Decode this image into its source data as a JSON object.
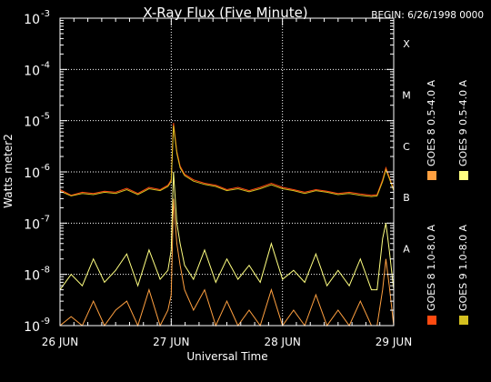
{
  "chart_data": {
    "type": "line",
    "title": "X-Ray Flux (Five Minute)",
    "begin_label": "BEGIN: 6/26/1998 0000",
    "ylabel": "Watts meter2",
    "xlabel": "Universal Time",
    "yscale": "log",
    "ylim": [
      1e-09,
      0.001
    ],
    "xlim": [
      0,
      3
    ],
    "grid": true,
    "y_ticks": [
      {
        "base": "10",
        "exp": "-9"
      },
      {
        "base": "10",
        "exp": "-8"
      },
      {
        "base": "10",
        "exp": "-7"
      },
      {
        "base": "10",
        "exp": "-6"
      },
      {
        "base": "10",
        "exp": "-5"
      },
      {
        "base": "10",
        "exp": "-4"
      },
      {
        "base": "10",
        "exp": "-3"
      }
    ],
    "x_ticks": [
      "26 JUN",
      "27 JUN",
      "28 JUN",
      "29 JUN"
    ],
    "flare_classes": [
      "A",
      "B",
      "C",
      "M",
      "X"
    ],
    "legend": [
      "GOES 8 1.0-8.0 A",
      "GOES 8 0.5-4.0 A",
      "GOES 9 1.0-8.0 A",
      "GOES 9 0.5-4.0 A"
    ],
    "colors": {
      "goes8_long": "#ff4a10",
      "goes8_short": "#ffa040",
      "goes9_long": "#d4c020",
      "goes9_short": "#ffff80",
      "axes": "#ffffff",
      "grid": "#ffffff"
    },
    "series": [
      {
        "name": "GOES 8 1.0-8.0 A",
        "x": [
          0,
          0.1,
          0.2,
          0.3,
          0.4,
          0.5,
          0.6,
          0.7,
          0.8,
          0.9,
          0.97,
          1.0,
          1.02,
          1.05,
          1.08,
          1.12,
          1.2,
          1.3,
          1.4,
          1.5,
          1.6,
          1.7,
          1.8,
          1.9,
          2.0,
          2.1,
          2.2,
          2.3,
          2.4,
          2.5,
          2.6,
          2.7,
          2.8,
          2.85,
          2.9,
          2.93,
          2.96,
          3.0
        ],
        "values": [
          4.5e-07,
          3.5e-07,
          4e-07,
          3.8e-07,
          4.2e-07,
          4e-07,
          4.8e-07,
          3.8e-07,
          5e-07,
          4.5e-07,
          5.5e-07,
          7e-07,
          9e-06,
          2.5e-06,
          1.3e-06,
          9e-07,
          7e-07,
          6e-07,
          5.5e-07,
          4.5e-07,
          5e-07,
          4.3e-07,
          5e-07,
          6e-07,
          5e-07,
          4.5e-07,
          4e-07,
          4.5e-07,
          4.2e-07,
          3.8e-07,
          4e-07,
          3.7e-07,
          3.5e-07,
          3.6e-07,
          7e-07,
          1.2e-06,
          8e-07,
          4.5e-07
        ]
      },
      {
        "name": "GOES 8 0.5-4.0 A",
        "x": [
          0,
          0.1,
          0.2,
          0.3,
          0.4,
          0.5,
          0.6,
          0.7,
          0.8,
          0.9,
          0.97,
          1.0,
          1.02,
          1.05,
          1.08,
          1.12,
          1.2,
          1.3,
          1.4,
          1.5,
          1.6,
          1.7,
          1.8,
          1.9,
          2.0,
          2.1,
          2.2,
          2.3,
          2.4,
          2.5,
          2.6,
          2.7,
          2.8,
          2.85,
          2.9,
          2.93,
          2.96,
          3.0
        ],
        "values": [
          1e-09,
          1.5e-09,
          1e-09,
          3e-09,
          1e-09,
          2e-09,
          3e-09,
          1e-09,
          5e-09,
          1e-09,
          2e-09,
          4e-09,
          3e-07,
          4e-08,
          1.5e-08,
          5e-09,
          2e-09,
          5e-09,
          1e-09,
          3e-09,
          1e-09,
          2e-09,
          1e-09,
          5e-09,
          1e-09,
          2e-09,
          1e-09,
          4e-09,
          1e-09,
          2e-09,
          1e-09,
          3e-09,
          1e-09,
          1e-09,
          5e-09,
          2e-08,
          6e-09,
          1e-09
        ]
      },
      {
        "name": "GOES 9 1.0-8.0 A",
        "x": [
          0,
          0.1,
          0.2,
          0.3,
          0.4,
          0.5,
          0.6,
          0.7,
          0.8,
          0.9,
          0.97,
          1.0,
          1.02,
          1.05,
          1.08,
          1.12,
          1.2,
          1.3,
          1.4,
          1.5,
          1.6,
          1.7,
          1.8,
          1.9,
          2.0,
          2.1,
          2.2,
          2.3,
          2.4,
          2.5,
          2.6,
          2.7,
          2.8,
          2.85,
          2.9,
          2.93,
          2.96,
          3.0
        ],
        "values": [
          4.2e-07,
          3.4e-07,
          3.8e-07,
          3.6e-07,
          4e-07,
          3.8e-07,
          4.5e-07,
          3.6e-07,
          4.7e-07,
          4.3e-07,
          5.2e-07,
          6.5e-07,
          8e-06,
          2.3e-06,
          1.2e-06,
          8.5e-07,
          6.6e-07,
          5.7e-07,
          5.2e-07,
          4.3e-07,
          4.7e-07,
          4.1e-07,
          4.7e-07,
          5.6e-07,
          4.7e-07,
          4.3e-07,
          3.8e-07,
          4.3e-07,
          4e-07,
          3.6e-07,
          3.8e-07,
          3.5e-07,
          3.3e-07,
          3.4e-07,
          6.5e-07,
          1.1e-06,
          7.5e-07,
          4.3e-07
        ]
      },
      {
        "name": "GOES 9 0.5-4.0 A",
        "x": [
          0,
          0.1,
          0.2,
          0.3,
          0.4,
          0.5,
          0.6,
          0.7,
          0.8,
          0.9,
          0.97,
          1.0,
          1.02,
          1.05,
          1.08,
          1.12,
          1.2,
          1.3,
          1.4,
          1.5,
          1.6,
          1.7,
          1.8,
          1.9,
          2.0,
          2.1,
          2.2,
          2.3,
          2.4,
          2.5,
          2.6,
          2.7,
          2.8,
          2.85,
          2.9,
          2.93,
          2.96,
          3.0
        ],
        "values": [
          5e-09,
          1e-08,
          6e-09,
          2e-08,
          7e-09,
          1.2e-08,
          2.5e-08,
          6e-09,
          3e-08,
          8e-09,
          1.2e-08,
          3e-08,
          1e-06,
          1e-07,
          4e-08,
          1.5e-08,
          8e-09,
          3e-08,
          7e-09,
          2e-08,
          8e-09,
          1.5e-08,
          7e-09,
          4e-08,
          8e-09,
          1.2e-08,
          7e-09,
          2.5e-08,
          6e-09,
          1.2e-08,
          6e-09,
          2e-08,
          5e-09,
          5e-09,
          5e-08,
          1e-07,
          3e-08,
          5e-09
        ]
      }
    ]
  }
}
